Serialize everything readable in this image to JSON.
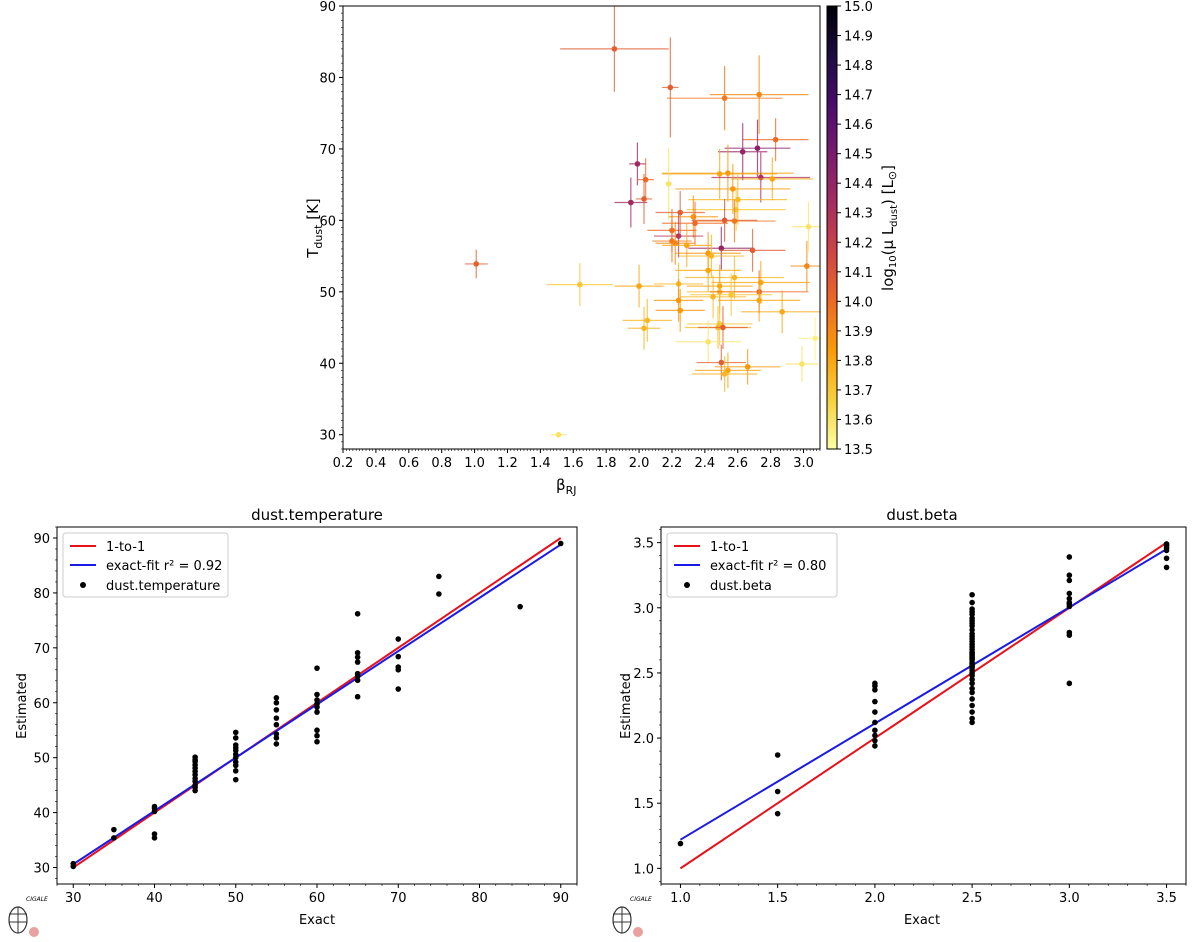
{
  "chart_data": [
    {
      "id": "top",
      "type": "scatter",
      "title": "",
      "xlabel_main": "β",
      "xlabel_sub": "RJ",
      "ylabel_main": "T",
      "ylabel_sub": "dust",
      "ylabel_unit": " [K]",
      "xlim": [
        0.2,
        3.1
      ],
      "ylim": [
        28,
        90
      ],
      "xticks": [
        0.2,
        0.4,
        0.6,
        0.8,
        1.0,
        1.2,
        1.4,
        1.6,
        1.8,
        2.0,
        2.2,
        2.4,
        2.6,
        2.8,
        3.0
      ],
      "xtick_labels": [
        "0.2",
        "0.4",
        "0.6",
        "0.8",
        "1.0",
        "1.2",
        "1.4",
        "1.6",
        "1.8",
        "2.0",
        "2.2",
        "2.4",
        "2.6",
        "2.8",
        "3.0"
      ],
      "yticks": [
        30,
        40,
        50,
        60,
        70,
        80,
        90
      ],
      "ytick_labels": [
        "30",
        "40",
        "50",
        "60",
        "70",
        "80",
        "90"
      ],
      "colorbar": {
        "label_prefix": "log",
        "label_log_sub": "10",
        "label_mid": "(μ L",
        "label_sub": "dust",
        "label_unit": ") [L",
        "label_sun": "⊙",
        "label_end": "]",
        "range": [
          13.5,
          15.0
        ],
        "ticks": [
          13.5,
          13.6,
          13.7,
          13.8,
          13.9,
          14.0,
          14.1,
          14.2,
          14.3,
          14.4,
          14.5,
          14.6,
          14.7,
          14.8,
          14.9,
          15.0
        ],
        "tick_labels": [
          "13.5",
          "13.6",
          "13.7",
          "13.8",
          "13.9",
          "14.0",
          "14.1",
          "14.2",
          "14.3",
          "14.4",
          "14.5",
          "14.6",
          "14.7",
          "14.8",
          "14.9",
          "15.0"
        ],
        "colors": [
          "#fcffa4",
          "#f7d13d",
          "#fb9b06",
          "#ed6925",
          "#cf4446",
          "#a52c60",
          "#781c6d",
          "#4a0c6b",
          "#1b0c41",
          "#000004"
        ]
      },
      "points": [
        {
          "x": 1.85,
          "y": 84.0,
          "xerr": 0.33,
          "yerr": 6.0,
          "c": 14.05
        },
        {
          "x": 2.19,
          "y": 78.6,
          "xerr": 0.05,
          "yerr": 7.0,
          "c": 14.05
        },
        {
          "x": 2.52,
          "y": 77.1,
          "xerr": 0.35,
          "yerr": 4.5,
          "c": 13.95
        },
        {
          "x": 2.73,
          "y": 77.6,
          "xerr": 0.3,
          "yerr": 5.5,
          "c": 13.9
        },
        {
          "x": 2.83,
          "y": 71.3,
          "xerr": 0.2,
          "yerr": 3.0,
          "c": 14.0
        },
        {
          "x": 2.72,
          "y": 70.1,
          "xerr": 0.2,
          "yerr": 4.0,
          "c": 14.45
        },
        {
          "x": 2.63,
          "y": 69.6,
          "xerr": 0.15,
          "yerr": 4.0,
          "c": 14.4
        },
        {
          "x": 1.99,
          "y": 67.9,
          "xerr": 0.05,
          "yerr": 3.0,
          "c": 14.35
        },
        {
          "x": 2.54,
          "y": 66.6,
          "xerr": 0.4,
          "yerr": 4.0,
          "c": 13.85
        },
        {
          "x": 2.49,
          "y": 66.5,
          "xerr": 0.35,
          "yerr": 3.5,
          "c": 13.8
        },
        {
          "x": 2.74,
          "y": 66.0,
          "xerr": 0.3,
          "yerr": 3.5,
          "c": 14.3
        },
        {
          "x": 2.81,
          "y": 65.8,
          "xerr": 0.25,
          "yerr": 3.0,
          "c": 13.8
        },
        {
          "x": 2.04,
          "y": 65.7,
          "xerr": 0.05,
          "yerr": 3.0,
          "c": 14.0
        },
        {
          "x": 2.18,
          "y": 65.1,
          "xerr": 0.02,
          "yerr": 5.0,
          "c": 13.6
        },
        {
          "x": 2.57,
          "y": 64.4,
          "xerr": 0.35,
          "yerr": 3.5,
          "c": 13.85
        },
        {
          "x": 2.6,
          "y": 62.9,
          "xerr": 0.3,
          "yerr": 3.5,
          "c": 13.75
        },
        {
          "x": 1.95,
          "y": 62.5,
          "xerr": 0.1,
          "yerr": 3.5,
          "c": 14.35
        },
        {
          "x": 2.03,
          "y": 63.0,
          "xerr": 0.05,
          "yerr": 3.5,
          "c": 14.05
        },
        {
          "x": 2.59,
          "y": 61.5,
          "xerr": 0.3,
          "yerr": 3.0,
          "c": 13.7
        },
        {
          "x": 2.25,
          "y": 61.1,
          "xerr": 0.15,
          "yerr": 3.0,
          "c": 14.05
        },
        {
          "x": 2.33,
          "y": 60.5,
          "xerr": 0.15,
          "yerr": 3.0,
          "c": 13.85
        },
        {
          "x": 2.52,
          "y": 60.0,
          "xerr": 0.2,
          "yerr": 3.0,
          "c": 14.1
        },
        {
          "x": 2.58,
          "y": 59.9,
          "xerr": 0.25,
          "yerr": 3.0,
          "c": 13.95
        },
        {
          "x": 2.34,
          "y": 59.6,
          "xerr": 0.2,
          "yerr": 3.0,
          "c": 14.0
        },
        {
          "x": 2.2,
          "y": 58.6,
          "xerr": 0.15,
          "yerr": 3.0,
          "c": 14.0
        },
        {
          "x": 2.24,
          "y": 57.8,
          "xerr": 0.15,
          "yerr": 3.0,
          "c": 14.25
        },
        {
          "x": 2.2,
          "y": 57.1,
          "xerr": 0.12,
          "yerr": 3.0,
          "c": 13.95
        },
        {
          "x": 2.22,
          "y": 56.8,
          "xerr": 0.12,
          "yerr": 3.0,
          "c": 13.9
        },
        {
          "x": 2.29,
          "y": 56.5,
          "xerr": 0.15,
          "yerr": 3.0,
          "c": 13.8
        },
        {
          "x": 2.5,
          "y": 56.1,
          "xerr": 0.2,
          "yerr": 3.0,
          "c": 14.4
        },
        {
          "x": 2.69,
          "y": 55.8,
          "xerr": 0.2,
          "yerr": 3.0,
          "c": 14.05
        },
        {
          "x": 2.42,
          "y": 55.4,
          "xerr": 0.2,
          "yerr": 3.0,
          "c": 13.85
        },
        {
          "x": 2.44,
          "y": 55.0,
          "xerr": 0.2,
          "yerr": 3.0,
          "c": 13.75
        },
        {
          "x": 3.03,
          "y": 59.1,
          "xerr": 0.1,
          "yerr": 3.5,
          "c": 13.6
        },
        {
          "x": 3.02,
          "y": 53.6,
          "xerr": 0.1,
          "yerr": 3.5,
          "c": 13.9
        },
        {
          "x": 1.01,
          "y": 53.9,
          "xerr": 0.07,
          "yerr": 2.0,
          "c": 14.05
        },
        {
          "x": 2.42,
          "y": 53.0,
          "xerr": 0.2,
          "yerr": 3.0,
          "c": 13.8
        },
        {
          "x": 2.58,
          "y": 52.0,
          "xerr": 0.3,
          "yerr": 3.0,
          "c": 13.75
        },
        {
          "x": 2.74,
          "y": 51.3,
          "xerr": 0.3,
          "yerr": 3.0,
          "c": 13.8
        },
        {
          "x": 2.24,
          "y": 51.1,
          "xerr": 0.15,
          "yerr": 3.0,
          "c": 13.75
        },
        {
          "x": 1.64,
          "y": 51.0,
          "xerr": 0.2,
          "yerr": 3.0,
          "c": 13.7
        },
        {
          "x": 2.0,
          "y": 50.8,
          "xerr": 0.15,
          "yerr": 3.0,
          "c": 13.8
        },
        {
          "x": 2.49,
          "y": 50.8,
          "xerr": 0.2,
          "yerr": 3.0,
          "c": 13.8
        },
        {
          "x": 2.49,
          "y": 50.0,
          "xerr": 0.2,
          "yerr": 3.0,
          "c": 13.75
        },
        {
          "x": 2.73,
          "y": 50.0,
          "xerr": 0.3,
          "yerr": 3.0,
          "c": 14.0
        },
        {
          "x": 2.56,
          "y": 49.6,
          "xerr": 0.25,
          "yerr": 3.0,
          "c": 13.7
        },
        {
          "x": 2.45,
          "y": 49.3,
          "xerr": 0.2,
          "yerr": 3.0,
          "c": 13.75
        },
        {
          "x": 2.24,
          "y": 48.8,
          "xerr": 0.15,
          "yerr": 3.0,
          "c": 13.85
        },
        {
          "x": 2.73,
          "y": 48.8,
          "xerr": 0.25,
          "yerr": 3.0,
          "c": 13.8
        },
        {
          "x": 2.25,
          "y": 47.4,
          "xerr": 0.15,
          "yerr": 3.0,
          "c": 13.85
        },
        {
          "x": 2.87,
          "y": 47.2,
          "xerr": 0.25,
          "yerr": 3.0,
          "c": 13.8
        },
        {
          "x": 2.05,
          "y": 46.0,
          "xerr": 0.15,
          "yerr": 3.0,
          "c": 13.75
        },
        {
          "x": 2.49,
          "y": 45.5,
          "xerr": 0.2,
          "yerr": 3.0,
          "c": 13.7
        },
        {
          "x": 2.48,
          "y": 45.0,
          "xerr": 0.2,
          "yerr": 3.0,
          "c": 13.75
        },
        {
          "x": 2.51,
          "y": 45.0,
          "xerr": 0.15,
          "yerr": 3.0,
          "c": 14.05
        },
        {
          "x": 2.03,
          "y": 44.9,
          "xerr": 0.1,
          "yerr": 3.0,
          "c": 13.75
        },
        {
          "x": 2.42,
          "y": 43.0,
          "xerr": 0.2,
          "yerr": 3.0,
          "c": 13.6
        },
        {
          "x": 3.07,
          "y": 43.5,
          "xerr": 0.1,
          "yerr": 3.0,
          "c": 13.55
        },
        {
          "x": 2.5,
          "y": 40.1,
          "xerr": 0.15,
          "yerr": 2.5,
          "c": 14.05
        },
        {
          "x": 2.99,
          "y": 39.9,
          "xerr": 0.1,
          "yerr": 2.5,
          "c": 13.6
        },
        {
          "x": 2.66,
          "y": 39.5,
          "xerr": 0.2,
          "yerr": 2.5,
          "c": 13.85
        },
        {
          "x": 2.54,
          "y": 39.0,
          "xerr": 0.2,
          "yerr": 2.5,
          "c": 13.8
        },
        {
          "x": 2.52,
          "y": 38.5,
          "xerr": 0.2,
          "yerr": 2.5,
          "c": 13.75
        },
        {
          "x": 1.51,
          "y": 30.0,
          "xerr": 0.05,
          "yerr": 0.2,
          "c": 13.6
        }
      ]
    },
    {
      "id": "temp",
      "type": "scatter",
      "title": "dust.temperature",
      "xlabel": "Exact",
      "ylabel": "Estimated",
      "xlim": [
        28,
        92
      ],
      "ylim": [
        27,
        92
      ],
      "xticks": [
        30,
        40,
        50,
        60,
        70,
        80,
        90
      ],
      "xtick_labels": [
        "30",
        "40",
        "50",
        "60",
        "70",
        "80",
        "90"
      ],
      "yticks": [
        30,
        40,
        50,
        60,
        70,
        80,
        90
      ],
      "ytick_labels": [
        "30",
        "40",
        "50",
        "60",
        "70",
        "80",
        "90"
      ],
      "legend": [
        "1-to-1",
        "exact-fit r² = 0.92",
        "dust.temperature"
      ],
      "one_to_one": [
        [
          30,
          30
        ],
        [
          90,
          90
        ]
      ],
      "fit": [
        [
          30,
          30.6
        ],
        [
          90,
          88.8
        ]
      ],
      "x": [
        30,
        30,
        35,
        35,
        40,
        40,
        40,
        40,
        40,
        45,
        45,
        45,
        45,
        45,
        45,
        45,
        45,
        45,
        45,
        45,
        45,
        50,
        50,
        50,
        50,
        50,
        50,
        50,
        50,
        50,
        50,
        50,
        55,
        55,
        55,
        55,
        55,
        55,
        55,
        55,
        60,
        60,
        60,
        60,
        60,
        60,
        60,
        60,
        60,
        65,
        65,
        65,
        65,
        65,
        65,
        65,
        65,
        70,
        70,
        70,
        70,
        70,
        75,
        75,
        85,
        90
      ],
      "y": [
        30.2,
        30.7,
        35.4,
        36.9,
        35.4,
        36.1,
        40.2,
        40.8,
        41.1,
        44.0,
        44.6,
        45.0,
        45.7,
        46.2,
        46.9,
        47.5,
        48.1,
        48.7,
        49.3,
        49.6,
        50.1,
        46.0,
        47.6,
        48.6,
        49.2,
        50.0,
        50.6,
        51.3,
        51.8,
        52.3,
        53.6,
        54.6,
        52.5,
        53.6,
        54.3,
        56.0,
        57.2,
        58.7,
        60.0,
        60.9,
        52.9,
        54.0,
        55.0,
        58.3,
        59.2,
        59.8,
        60.5,
        61.5,
        66.3,
        61.1,
        64.1,
        64.8,
        65.3,
        67.4,
        68.3,
        69.1,
        76.2,
        62.5,
        66.0,
        66.5,
        68.4,
        71.6,
        79.8,
        83.0,
        77.5,
        89.0
      ]
    },
    {
      "id": "beta",
      "type": "scatter",
      "title": "dust.beta",
      "xlabel": "Exact",
      "ylabel": "Estimated",
      "xlim": [
        0.9,
        3.6
      ],
      "ylim": [
        0.88,
        3.62
      ],
      "xticks": [
        1.0,
        1.5,
        2.0,
        2.5,
        3.0,
        3.5
      ],
      "xtick_labels": [
        "1.0",
        "1.5",
        "2.0",
        "2.5",
        "3.0",
        "3.5"
      ],
      "yticks": [
        1.0,
        1.5,
        2.0,
        2.5,
        3.0,
        3.5
      ],
      "ytick_labels": [
        "1.0",
        "1.5",
        "2.0",
        "2.5",
        "3.0",
        "3.5"
      ],
      "legend": [
        "1-to-1",
        "exact-fit r² = 0.80",
        "dust.beta"
      ],
      "one_to_one": [
        [
          1.0,
          1.0
        ],
        [
          3.5,
          3.5
        ]
      ],
      "fit": [
        [
          1.0,
          1.22
        ],
        [
          3.5,
          3.45
        ]
      ],
      "x": [
        1.0,
        1.5,
        1.5,
        1.5,
        2.0,
        2.0,
        2.0,
        2.0,
        2.0,
        2.0,
        2.0,
        2.0,
        2.0,
        2.0,
        2.5,
        2.5,
        2.5,
        2.5,
        2.5,
        2.5,
        2.5,
        2.5,
        2.5,
        2.5,
        2.5,
        2.5,
        2.5,
        2.5,
        2.5,
        2.5,
        2.5,
        2.5,
        2.5,
        2.5,
        2.5,
        2.5,
        2.5,
        2.5,
        2.5,
        2.5,
        2.5,
        2.5,
        2.5,
        2.5,
        2.5,
        2.5,
        2.5,
        2.5,
        2.5,
        2.5,
        2.5,
        2.5,
        2.5,
        2.5,
        2.5,
        3.0,
        3.0,
        3.0,
        3.0,
        3.0,
        3.0,
        3.0,
        3.0,
        3.0,
        3.0,
        3.0,
        3.5,
        3.5,
        3.5,
        3.5,
        3.5,
        3.5
      ],
      "y": [
        1.19,
        1.42,
        1.59,
        1.87,
        1.94,
        1.98,
        2.02,
        2.06,
        2.12,
        2.2,
        2.28,
        2.37,
        2.4,
        2.42,
        2.12,
        2.15,
        2.2,
        2.25,
        2.3,
        2.35,
        2.38,
        2.42,
        2.45,
        2.48,
        2.5,
        2.52,
        2.54,
        2.56,
        2.58,
        2.6,
        2.62,
        2.64,
        2.66,
        2.68,
        2.7,
        2.72,
        2.74,
        2.76,
        2.78,
        2.8,
        2.83,
        2.86,
        2.88,
        2.9,
        2.92,
        2.95,
        2.97,
        2.99,
        3.04,
        3.1,
        2.55,
        2.57,
        2.61,
        2.63,
        2.65,
        2.42,
        2.79,
        2.81,
        3.01,
        3.03,
        3.07,
        3.11,
        3.21,
        3.25,
        3.39,
        3.04,
        3.31,
        3.38,
        3.44,
        3.46,
        3.48,
        3.49
      ]
    }
  ],
  "logos": [
    {
      "text": "CIGALE"
    },
    {
      "text": "CIGALE"
    }
  ]
}
